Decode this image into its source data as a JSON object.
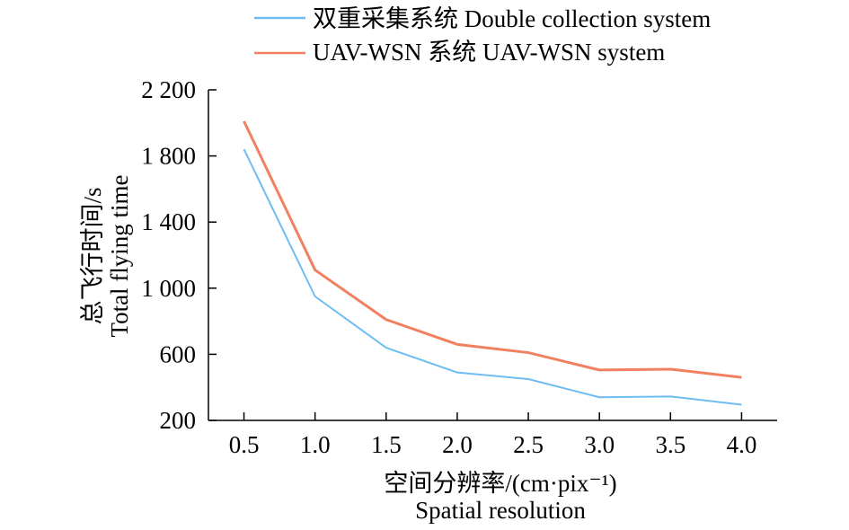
{
  "chart_data": {
    "type": "line",
    "x": [
      "0.5",
      "1.0",
      "1.5",
      "2.0",
      "2.5",
      "3.0",
      "3.5",
      "4.0"
    ],
    "x_values": [
      0.5,
      1.0,
      1.5,
      2.0,
      2.5,
      3.0,
      3.5,
      4.0
    ],
    "series": [
      {
        "name": "双重采集系统 Double collection system",
        "color": "#6ebcf2",
        "values": [
          1840,
          950,
          640,
          490,
          450,
          340,
          345,
          295
        ]
      },
      {
        "name": "UAV-WSN 系统 UAV-WSN system",
        "color": "#f08060",
        "values": [
          2010,
          1110,
          810,
          660,
          610,
          505,
          510,
          460
        ]
      }
    ],
    "ylabel_cn": "总飞行时间/s",
    "ylabel_en": "Total flying time",
    "xlabel_cn": "空间分辨率/(cm·pix⁻¹)",
    "xlabel_en": "Spatial resolution",
    "y_ticks": [
      "200",
      "600",
      "1 000",
      "1 400",
      "1 800",
      "2 200"
    ],
    "y_tick_values": [
      200,
      600,
      1000,
      1400,
      1800,
      2200
    ],
    "ylim": [
      200,
      2200
    ],
    "xlim": [
      0.25,
      4.25
    ],
    "grid": false,
    "legend_position": "top"
  }
}
